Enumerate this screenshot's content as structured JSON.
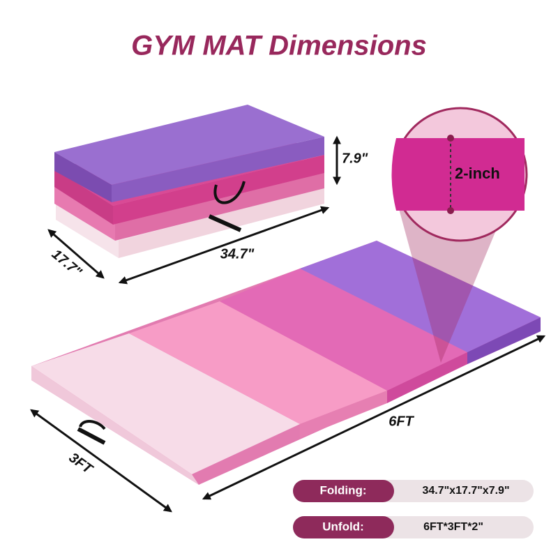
{
  "title": "GYM MAT Dimensions",
  "folded": {
    "height": "7.9\"",
    "width": "17.7\"",
    "length": "34.7\""
  },
  "detail": {
    "thickness": "2-inch"
  },
  "unfolded": {
    "length": "6FT",
    "width": "3FT"
  },
  "specs": [
    {
      "label": "Folding:",
      "value": "34.7\"x17.7\"x7.9\""
    },
    {
      "label": "Unfold:",
      "value": "6FT*3FT*2\""
    }
  ]
}
